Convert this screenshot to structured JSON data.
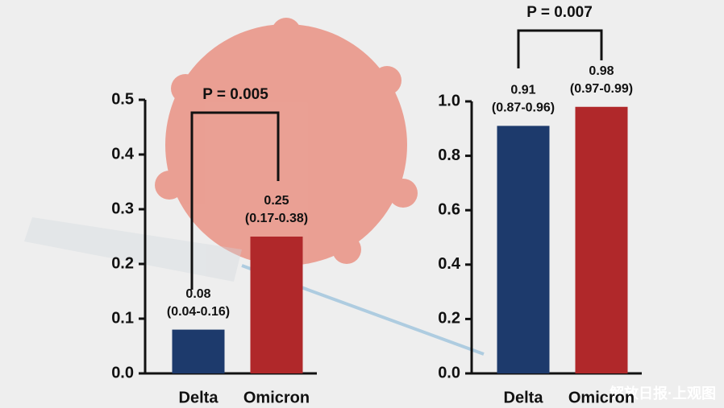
{
  "chart_data": [
    {
      "type": "bar",
      "categories": [
        "Delta",
        "Omicron"
      ],
      "values": [
        0.08,
        0.25
      ],
      "intervals": [
        "(0.04-0.16)",
        "(0.17-0.38)"
      ],
      "colors": [
        "#1d3a6c",
        "#b0282a"
      ],
      "ylim": [
        0,
        0.5
      ],
      "yticks": [
        {
          "value": 0,
          "label": "0.0"
        },
        0.1,
        0.2,
        0.3,
        0.4,
        0.5
      ],
      "annotation": "P = 0.005"
    },
    {
      "type": "bar",
      "categories": [
        "Delta",
        "Omicron"
      ],
      "values": [
        0.91,
        0.98
      ],
      "intervals": [
        "(0.87-0.96)",
        "(0.97-0.99)"
      ],
      "colors": [
        "#1d3a6c",
        "#b0282a"
      ],
      "ylim": [
        0,
        1
      ],
      "yticks": [
        {
          "value": 0,
          "label": "0.0"
        },
        0.2,
        0.4,
        0.6,
        0.8,
        {
          "value": 1,
          "label": "1.0"
        }
      ],
      "annotation": "P = 0.007"
    }
  ],
  "watermark": "解放日报·上观图"
}
